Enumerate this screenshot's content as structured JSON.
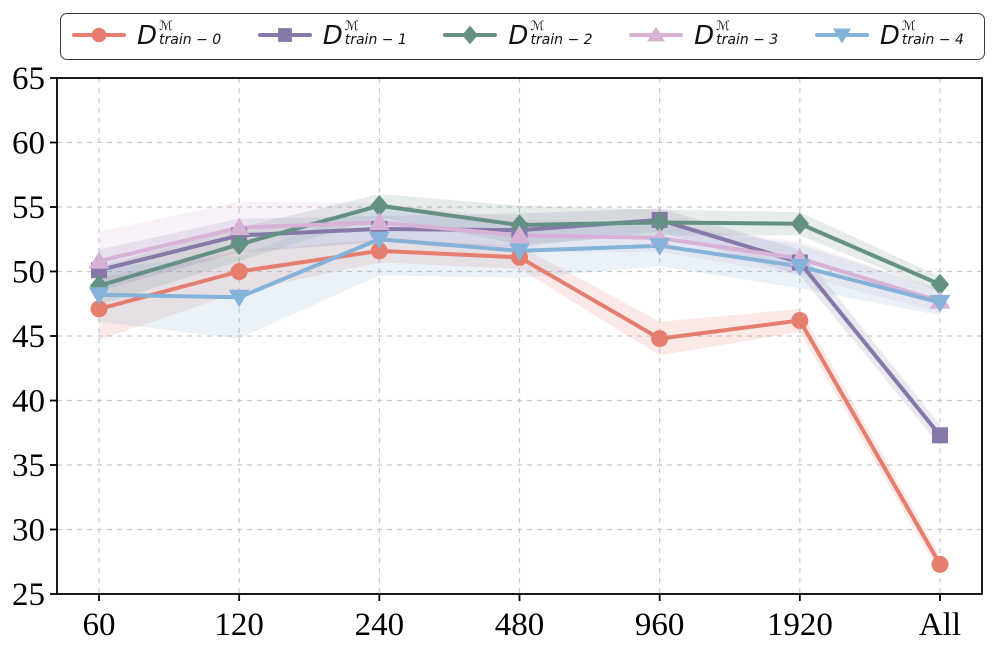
{
  "figure": {
    "background": "#ffffff",
    "axis_color": "#000000",
    "grid_color": "#c9c9c9",
    "legend_border_color": "#3c3c3c"
  },
  "chart_data": {
    "type": "line",
    "title": "",
    "xlabel": "",
    "ylabel": "",
    "categories": [
      "60",
      "120",
      "240",
      "480",
      "960",
      "1920",
      "All"
    ],
    "ylim": [
      25,
      65
    ],
    "yticks": [
      25,
      30,
      35,
      40,
      45,
      50,
      55,
      60,
      65
    ],
    "grid": true,
    "grid_style": "dashed",
    "legend_position": "top-outside-horizontal",
    "series": [
      {
        "key": "train-0",
        "name": "D^M_train-0",
        "label": {
          "base": "D",
          "sup": "ℳ",
          "sub": "train − 0"
        },
        "color": "#E57E6E",
        "marker": "circle",
        "values": [
          47.1,
          50.0,
          51.6,
          51.1,
          44.8,
          46.2,
          27.3
        ],
        "band_halfwidth": [
          2.4,
          1.6,
          0.9,
          0.9,
          1.3,
          0.9,
          0.7
        ]
      },
      {
        "key": "train-1",
        "name": "D^M_train-1",
        "label": {
          "base": "D",
          "sup": "ℳ",
          "sub": "train − 1"
        },
        "color": "#8678A9",
        "marker": "square",
        "values": [
          50.1,
          52.8,
          53.3,
          53.2,
          54.0,
          50.7,
          37.3
        ],
        "band_halfwidth": [
          1.6,
          1.3,
          1.0,
          1.3,
          0.9,
          1.0,
          0.8
        ]
      },
      {
        "key": "train-2",
        "name": "D^M_train-2",
        "label": {
          "base": "D",
          "sup": "ℳ",
          "sub": "train − 2"
        },
        "color": "#649183",
        "marker": "diamond",
        "values": [
          48.9,
          52.1,
          55.1,
          53.6,
          53.8,
          53.7,
          49.0
        ],
        "band_halfwidth": [
          1.5,
          1.3,
          0.9,
          1.5,
          1.0,
          0.9,
          0.6
        ]
      },
      {
        "key": "train-3",
        "name": "D^M_train-3",
        "label": {
          "base": "D",
          "sup": "ℳ",
          "sub": "train − 3"
        },
        "color": "#D8B1D6",
        "marker": "triangle-up",
        "values": [
          50.8,
          53.4,
          53.8,
          52.8,
          52.6,
          51.0,
          47.7
        ],
        "band_halfwidth": [
          2.3,
          2.0,
          1.5,
          1.3,
          1.1,
          1.3,
          0.9
        ]
      },
      {
        "key": "train-4",
        "name": "D^M_train-4",
        "label": {
          "base": "D",
          "sup": "ℳ",
          "sub": "train − 4"
        },
        "color": "#84B2D8",
        "marker": "triangle-down",
        "values": [
          48.2,
          48.0,
          52.5,
          51.6,
          52.0,
          50.4,
          47.6
        ],
        "band_halfwidth": [
          2.1,
          3.2,
          2.8,
          2.1,
          1.6,
          1.7,
          1.0
        ]
      }
    ]
  }
}
